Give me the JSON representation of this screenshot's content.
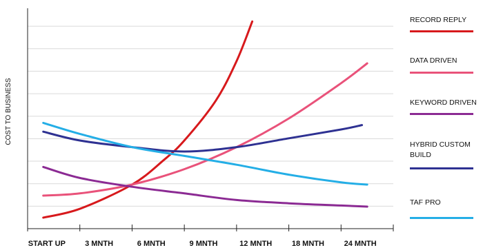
{
  "chart_data": {
    "type": "line",
    "title": "",
    "xlabel": "",
    "ylabel": "COST TO BUSINESS",
    "categories": [
      "START UP",
      "3 MNTH",
      "6 MNTH",
      "9 MNTH",
      "12 MNTH",
      "18 MNTH",
      "24 MNTH"
    ],
    "ylim": [
      0,
      100
    ],
    "grid": "horizontal",
    "legend_position": "right",
    "series": [
      {
        "name": "RECORD REPLY",
        "color": "#d7191c",
        "x": [
          0.3,
          1,
          2,
          2.6,
          3,
          3.6,
          4,
          4.3
        ],
        "y": [
          5,
          9,
          20,
          31,
          40,
          58,
          76,
          94
        ]
      },
      {
        "name": "DATA DRIVEN",
        "color": "#e9527a",
        "x": [
          0.3,
          1,
          2,
          3,
          4,
          5,
          6,
          6.5
        ],
        "y": [
          15,
          16,
          20,
          27,
          37,
          50,
          66,
          75
        ]
      },
      {
        "name": "KEYWORD DRIVEN",
        "color": "#8b2a93",
        "x": [
          0.3,
          1,
          2,
          3,
          4,
          5,
          6,
          6.5
        ],
        "y": [
          28,
          23,
          19,
          16,
          13,
          11.5,
          10.5,
          10
        ]
      },
      {
        "name": "HYBRID CUSTOM BUILD",
        "color": "#2e3192",
        "x": [
          0.3,
          1,
          2,
          3,
          4,
          5,
          6,
          6.4
        ],
        "y": [
          44,
          40,
          37,
          35,
          37,
          41,
          45,
          47
        ]
      },
      {
        "name": "TAF PRO",
        "color": "#24aee6",
        "x": [
          0.3,
          1,
          2,
          3,
          4,
          5,
          6,
          6.5
        ],
        "y": [
          48,
          43,
          37,
          33,
          29,
          24.5,
          21,
          20
        ]
      }
    ]
  },
  "legend_labels": [
    "RECORD REPLY",
    "DATA DRIVEN",
    "KEYWORD DRIVEN",
    "HYBRID CUSTOM\nBUILD",
    "TAF PRO"
  ]
}
